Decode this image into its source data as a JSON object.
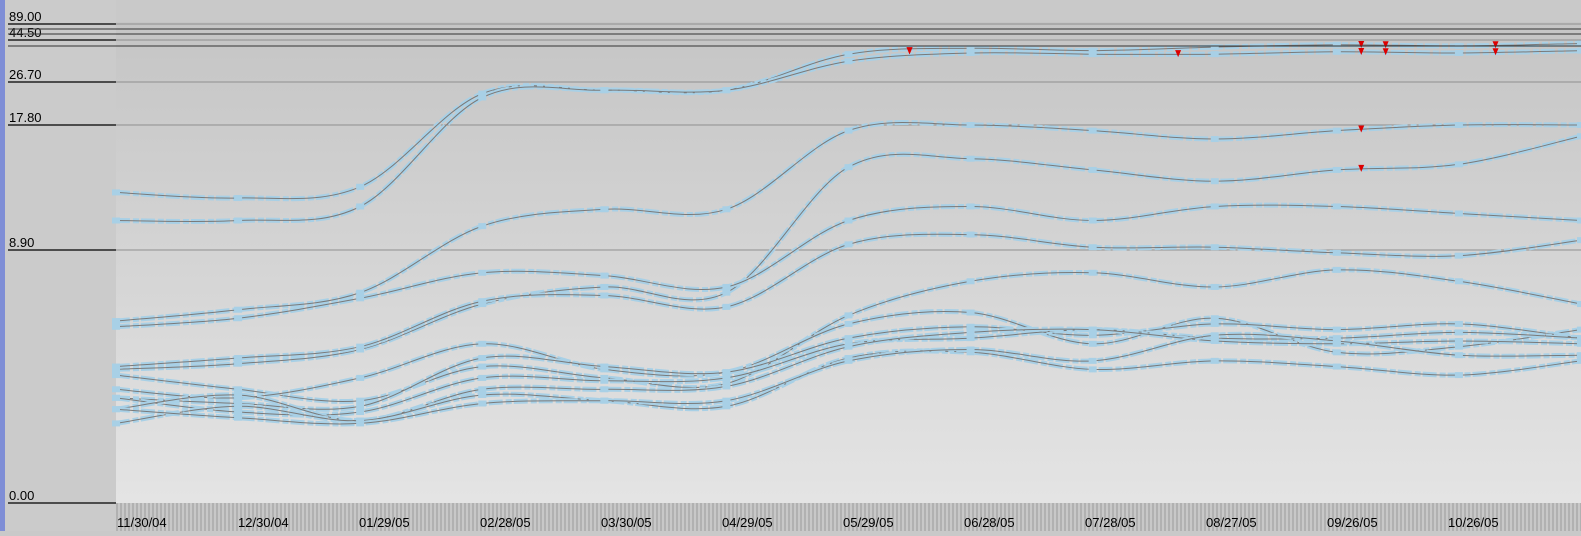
{
  "chart_data": {
    "type": "line",
    "y_ticks": [
      {
        "value": 0,
        "label": "0.00"
      },
      {
        "value": 8.9,
        "label": "8.90"
      },
      {
        "value": 17.8,
        "label": "17.80"
      },
      {
        "value": 26.7,
        "label": "26.70"
      },
      {
        "value": 44.5,
        "label": "44.50"
      },
      {
        "value": 89,
        "label": "89.00"
      }
    ],
    "x_labels": [
      "11/30/04",
      "12/30/04",
      "01/29/05",
      "02/28/05",
      "03/30/05",
      "04/29/05",
      "05/29/05",
      "06/28/05",
      "07/28/05",
      "08/27/05",
      "09/26/05",
      "10/26/05"
    ],
    "grid": true,
    "colors": {
      "series": "#a8d0e6",
      "thread": "#7a7a7a",
      "marker": "#dd0000",
      "left_border": "#7f8ed6"
    },
    "series": [
      {
        "values": [
          13.0,
          12.6,
          13.4,
          24.3,
          25.0,
          25.0,
          38.5,
          41.0,
          40.0,
          41.5,
          42.5,
          42.0,
          43.0
        ]
      },
      {
        "values": [
          11.0,
          11.0,
          12.0,
          23.5,
          25.0,
          25.0,
          35.5,
          39.0,
          38.5,
          38.5,
          39.5,
          39.0,
          40.0
        ]
      },
      {
        "values": [
          6.4,
          6.8,
          7.4,
          10.6,
          11.8,
          11.8,
          17.4,
          17.8,
          17.4,
          16.8,
          17.4,
          17.8,
          17.8
        ]
      },
      {
        "values": [
          4.7,
          4.9,
          5.4,
          7.0,
          7.6,
          7.4,
          14.8,
          15.4,
          14.6,
          13.8,
          14.6,
          15.0,
          17.0
        ]
      },
      {
        "values": [
          6.2,
          6.5,
          7.2,
          8.1,
          8.0,
          7.6,
          11.0,
          12.0,
          11.0,
          12.0,
          12.0,
          11.5,
          11.0
        ]
      },
      {
        "values": [
          4.8,
          5.1,
          5.5,
          7.1,
          7.3,
          6.9,
          9.3,
          10.0,
          9.1,
          9.1,
          8.8,
          8.7,
          9.6
        ]
      },
      {
        "values": [
          4.5,
          4.0,
          3.6,
          4.8,
          4.4,
          4.2,
          6.6,
          7.8,
          8.1,
          7.6,
          8.2,
          7.8,
          7.0
        ]
      },
      {
        "values": [
          4.0,
          3.7,
          4.4,
          5.6,
          4.7,
          4.6,
          6.3,
          6.7,
          5.6,
          6.5,
          5.3,
          5.5,
          6.1
        ]
      },
      {
        "values": [
          3.7,
          3.5,
          3.4,
          5.1,
          4.8,
          4.6,
          5.8,
          6.2,
          5.9,
          6.3,
          6.1,
          6.3,
          5.8
        ]
      },
      {
        "values": [
          3.7,
          3.2,
          3.2,
          4.4,
          4.3,
          4.4,
          5.6,
          5.8,
          6.1,
          5.8,
          5.8,
          6.0,
          5.8
        ]
      },
      {
        "values": [
          3.3,
          3.8,
          2.9,
          4.0,
          4.0,
          4.1,
          5.5,
          6.0,
          6.1,
          5.7,
          5.6,
          5.7,
          5.6
        ]
      },
      {
        "values": [
          2.8,
          3.4,
          2.9,
          3.8,
          3.6,
          3.4,
          5.1,
          5.3,
          4.7,
          5.0,
          4.8,
          4.5,
          5.0
        ]
      },
      {
        "values": [
          3.3,
          3.0,
          2.8,
          3.5,
          3.6,
          3.6,
          5.0,
          5.4,
          5.0,
          5.9,
          5.7,
          5.2,
          5.2
        ]
      }
    ]
  }
}
